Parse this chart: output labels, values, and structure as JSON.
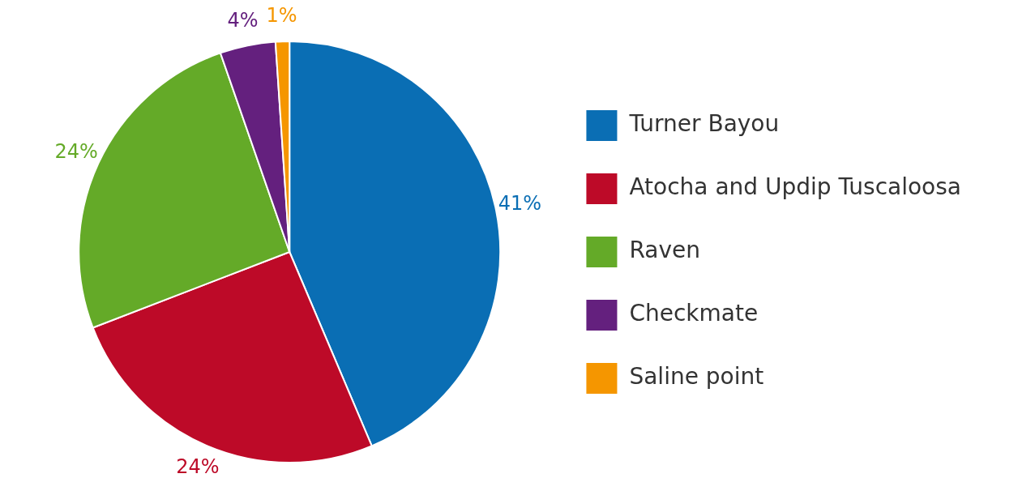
{
  "chart_data": {
    "type": "pie",
    "categories": [
      "Turner Bayou",
      "Atocha and Updip Tuscaloosa",
      "Raven",
      "Checkmate",
      "Saline point"
    ],
    "values": [
      41,
      24,
      24,
      4,
      1
    ],
    "colors": [
      "#0a6eb4",
      "#bd0a28",
      "#64aa28",
      "#64207e",
      "#f59600"
    ],
    "value_labels": [
      "41%",
      "24%",
      "24%",
      "4%",
      "1%"
    ],
    "legend": "right"
  }
}
